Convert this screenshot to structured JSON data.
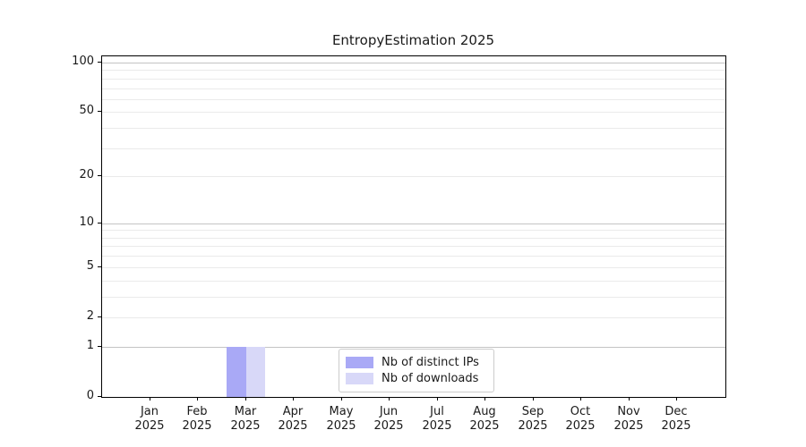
{
  "title": "EntropyEstimation 2025",
  "chart_data": {
    "type": "bar",
    "title": "EntropyEstimation 2025",
    "categories": [
      "Jan",
      "Feb",
      "Mar",
      "Apr",
      "May",
      "Jun",
      "Jul",
      "Aug",
      "Sep",
      "Oct",
      "Nov",
      "Dec"
    ],
    "category_year": "2025",
    "series": [
      {
        "name": "Nb of distinct IPs",
        "color": "#a9a9f6",
        "values": [
          0,
          0,
          1,
          0,
          0,
          0,
          0,
          0,
          0,
          0,
          0,
          0
        ]
      },
      {
        "name": "Nb of downloads",
        "color": "#d8d8f8",
        "values": [
          0,
          0,
          1,
          0,
          0,
          0,
          0,
          0,
          0,
          0,
          0,
          0
        ]
      }
    ],
    "xlabel": "",
    "ylabel": "",
    "yscale": "log1p",
    "ylim": [
      0,
      100
    ],
    "yticks": [
      0,
      1,
      2,
      5,
      10,
      20,
      50,
      100
    ],
    "major_gridlines": [
      1,
      10,
      100
    ],
    "minor_gridlines": [
      2,
      3,
      4,
      5,
      6,
      7,
      8,
      9,
      20,
      30,
      40,
      50,
      60,
      70,
      80,
      90
    ],
    "grid": true,
    "legend_position": "lower center",
    "colors": {
      "major_grid": "#c4c4c4",
      "minor_grid": "#eaeaea",
      "axis": "#000000",
      "text": "#1a1a1a",
      "legend_border": "#cccccc"
    }
  }
}
